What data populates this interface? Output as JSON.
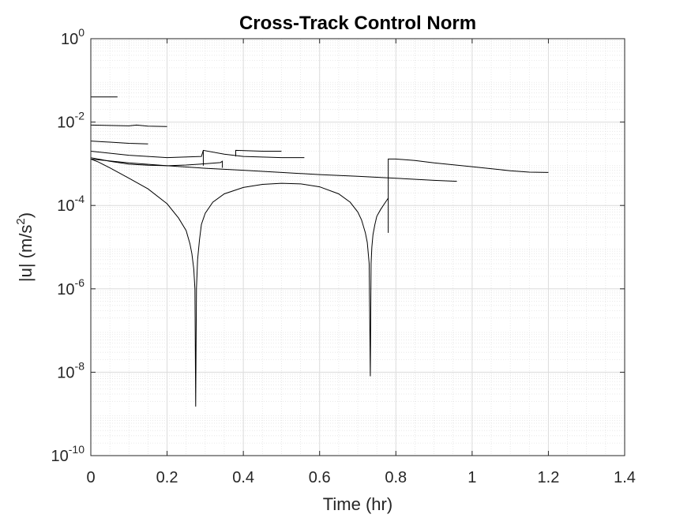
{
  "chart_data": {
    "type": "line",
    "title": "Cross-Track Control Norm",
    "xlabel": "Time (hr)",
    "ylabel_base": "|u| (m/s",
    "ylabel_sup": "2",
    "ylabel_close": ")",
    "xscale": "linear",
    "yscale": "log",
    "xlim": [
      0,
      1.4
    ],
    "ylim": [
      1e-10,
      1
    ],
    "grid": true,
    "minor_grid": true,
    "line_color": "#000000",
    "x_ticks": [
      {
        "value": 0,
        "label": "0"
      },
      {
        "value": 0.2,
        "label": "0.2"
      },
      {
        "value": 0.4,
        "label": "0.4"
      },
      {
        "value": 0.6,
        "label": "0.6"
      },
      {
        "value": 0.8,
        "label": "0.8"
      },
      {
        "value": 1,
        "label": "1"
      },
      {
        "value": 1.2,
        "label": "1.2"
      },
      {
        "value": 1.4,
        "label": "1.4"
      }
    ],
    "y_ticks": [
      {
        "exp": -10,
        "base": "10",
        "sup": "-10"
      },
      {
        "exp": -8,
        "base": "10",
        "sup": "-8"
      },
      {
        "exp": -6,
        "base": "10",
        "sup": "-6"
      },
      {
        "exp": -4,
        "base": "10",
        "sup": "-4"
      },
      {
        "exp": -2,
        "base": "10",
        "sup": "-2"
      },
      {
        "exp": 0,
        "base": "10",
        "sup": "0"
      }
    ],
    "series": [
      {
        "x": [
          0,
          0.07
        ],
        "y": [
          0.04,
          0.04
        ]
      },
      {
        "x": [
          0,
          0.05,
          0.1,
          0.12,
          0.15,
          0.2
        ],
        "y": [
          0.0085,
          0.0083,
          0.0081,
          0.0085,
          0.008,
          0.0078
        ]
      },
      {
        "x": [
          0,
          0.05,
          0.1,
          0.15
        ],
        "y": [
          0.0035,
          0.0033,
          0.0031,
          0.003
        ]
      },
      {
        "x": [
          0,
          0.1,
          0.2,
          0.29,
          0.295,
          0.35,
          0.4,
          0.5,
          0.56
        ],
        "y": [
          0.002,
          0.0016,
          0.0014,
          0.0015,
          0.0021,
          0.0017,
          0.0015,
          0.0014,
          0.0014
        ]
      },
      {
        "x": [
          0.295,
          0.295
        ],
        "y": [
          0.0009,
          0.0021
        ]
      },
      {
        "x": [
          0.38,
          0.38,
          0.45,
          0.5
        ],
        "y": [
          0.0015,
          0.0021,
          0.002,
          0.002
        ]
      },
      {
        "x": [
          0,
          0.05,
          0.1,
          0.15,
          0.2,
          0.25,
          0.3,
          0.34,
          0.345,
          0.345
        ],
        "y": [
          0.0014,
          0.00115,
          0.00098,
          0.00092,
          0.0009,
          0.00093,
          0.001,
          0.00107,
          0.00115,
          0.0008
        ]
      },
      {
        "x": [
          0,
          0.1,
          0.2,
          0.3,
          0.4,
          0.5,
          0.6,
          0.7,
          0.8,
          0.9,
          0.96
        ],
        "y": [
          0.0013,
          0.00105,
          0.0009,
          0.00078,
          0.0007,
          0.00062,
          0.00055,
          0.0005,
          0.00045,
          0.0004,
          0.00038
        ]
      },
      {
        "x": [
          0,
          0.02,
          0.05,
          0.1,
          0.15,
          0.2,
          0.23,
          0.25,
          0.26,
          0.265,
          0.27,
          0.273,
          0.275,
          0.277,
          0.28,
          0.285,
          0.29,
          0.3,
          0.32,
          0.35,
          0.4,
          0.45,
          0.5,
          0.55,
          0.6,
          0.65,
          0.68,
          0.7,
          0.71,
          0.72,
          0.725,
          0.73,
          0.733,
          0.735,
          0.737,
          0.74,
          0.745,
          0.75,
          0.76,
          0.77,
          0.78
        ],
        "y": [
          0.0013,
          0.0011,
          0.0008,
          0.00045,
          0.00025,
          0.00011,
          5e-05,
          2.5e-05,
          1.2e-05,
          7e-06,
          3e-06,
          1e-06,
          1.5e-09,
          1e-06,
          5e-06,
          1.5e-05,
          3.5e-05,
          6.5e-05,
          0.00012,
          0.00019,
          0.00027,
          0.00032,
          0.00034,
          0.00033,
          0.00028,
          0.00019,
          0.00012,
          7e-05,
          4.5e-05,
          2.2e-05,
          1.3e-05,
          4e-06,
          8e-09,
          4e-06,
          1e-05,
          2e-05,
          3.5e-05,
          5.5e-05,
          8e-05,
          0.00011,
          0.00015
        ]
      },
      {
        "x": [
          0.78,
          0.78,
          0.78,
          0.8,
          0.85,
          0.9,
          1,
          1.1,
          1.15,
          1.2
        ],
        "y": [
          0.00015,
          2.2e-05,
          0.0013,
          0.0013,
          0.0012,
          0.00105,
          0.00085,
          0.00068,
          0.00063,
          0.00062
        ]
      }
    ]
  }
}
